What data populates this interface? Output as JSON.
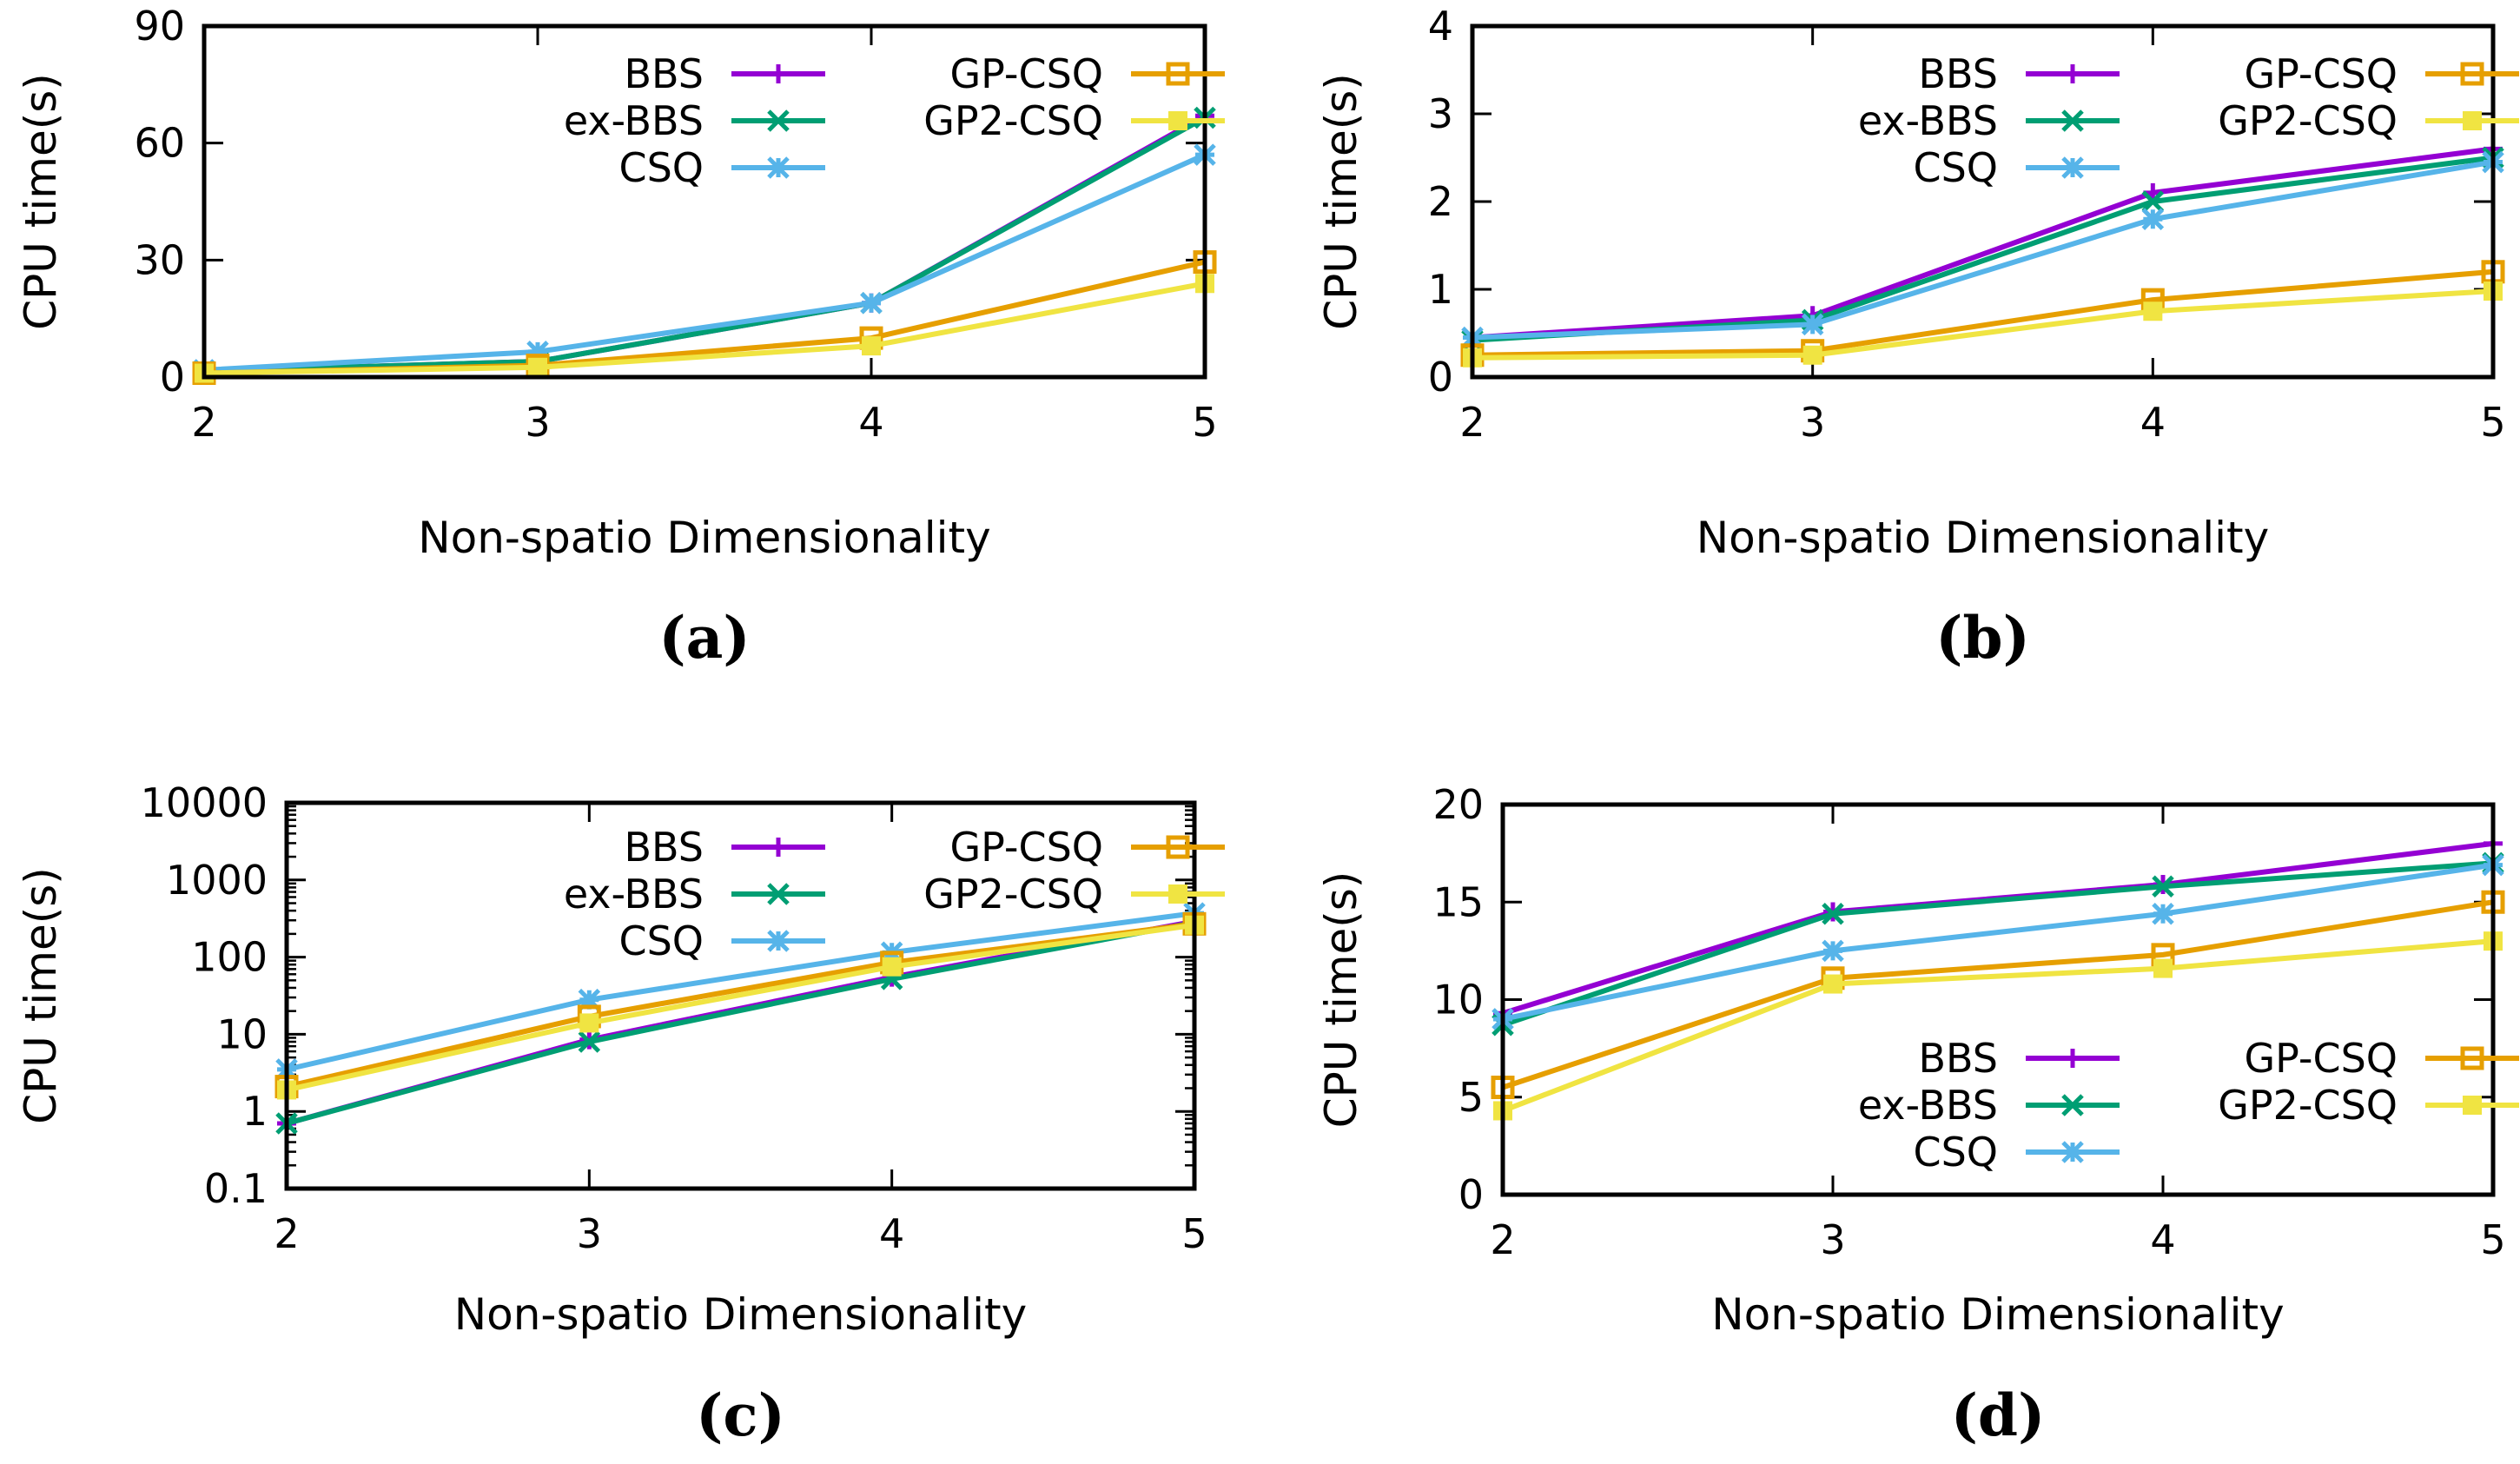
{
  "chart_data": [
    {
      "type": "line",
      "caption": "(a)",
      "xlabel": "Non-spatio Dimensionality",
      "ylabel": "CPU time(s)",
      "yscale": "linear",
      "x": [
        2,
        3,
        4,
        5
      ],
      "xticks": [
        "2",
        "3",
        "4",
        "5"
      ],
      "ylim": [
        0,
        90
      ],
      "yticks": [
        0,
        30,
        60,
        90
      ],
      "ytick_labels": [
        "0",
        "30",
        "60",
        "90"
      ],
      "legend_position": "top-right",
      "series": [
        {
          "name": "BBS",
          "values": [
            1.5,
            4,
            19,
            67
          ]
        },
        {
          "name": "ex-BBS",
          "values": [
            1.5,
            4,
            19,
            66.5
          ]
        },
        {
          "name": "CSQ",
          "values": [
            1.8,
            6.5,
            19,
            57
          ]
        },
        {
          "name": "GP-CSQ",
          "values": [
            1,
            3,
            10,
            29.5
          ]
        },
        {
          "name": "GP2-CSQ",
          "values": [
            1,
            2.5,
            8,
            24
          ]
        }
      ]
    },
    {
      "type": "line",
      "caption": "(b)",
      "xlabel": "Non-spatio Dimensionality",
      "ylabel": "CPU time(s)",
      "yscale": "linear",
      "x": [
        2,
        3,
        4,
        5
      ],
      "xticks": [
        "2",
        "3",
        "4",
        "5"
      ],
      "ylim": [
        0,
        4
      ],
      "yticks": [
        0,
        1,
        2,
        3,
        4
      ],
      "ytick_labels": [
        "0",
        "1",
        "2",
        "3",
        "4"
      ],
      "legend_position": "top-right",
      "series": [
        {
          "name": "BBS",
          "values": [
            0.45,
            0.7,
            2.1,
            2.6
          ]
        },
        {
          "name": "ex-BBS",
          "values": [
            0.42,
            0.65,
            2.0,
            2.5
          ]
        },
        {
          "name": "CSQ",
          "values": [
            0.45,
            0.6,
            1.8,
            2.45
          ]
        },
        {
          "name": "GP-CSQ",
          "values": [
            0.25,
            0.3,
            0.88,
            1.2
          ]
        },
        {
          "name": "GP2-CSQ",
          "values": [
            0.22,
            0.25,
            0.75,
            0.98
          ]
        }
      ]
    },
    {
      "type": "line",
      "caption": "(c)",
      "xlabel": "Non-spatio Dimensionality",
      "ylabel": "CPU time(s)",
      "yscale": "log",
      "x": [
        2,
        3,
        4,
        5
      ],
      "xticks": [
        "2",
        "3",
        "4",
        "5"
      ],
      "ylim": [
        0.1,
        10000
      ],
      "yticks": [
        0.1,
        1,
        10,
        100,
        1000,
        10000
      ],
      "ytick_labels": [
        "0.1",
        "1",
        "10",
        "100",
        "1000",
        "10000"
      ],
      "legend_position": "top-right",
      "series": [
        {
          "name": "BBS",
          "values": [
            0.7,
            8.5,
            55,
            290
          ]
        },
        {
          "name": "ex-BBS",
          "values": [
            0.7,
            8,
            52,
            280
          ]
        },
        {
          "name": "CSQ",
          "values": [
            3.5,
            28,
            115,
            370
          ]
        },
        {
          "name": "GP-CSQ",
          "values": [
            2.1,
            17,
            85,
            270
          ]
        },
        {
          "name": "GP2-CSQ",
          "values": [
            1.9,
            14,
            75,
            260
          ]
        }
      ]
    },
    {
      "type": "line",
      "caption": "(d)",
      "xlabel": "Non-spatio Dimensionality",
      "ylabel": "CPU time(s)",
      "yscale": "linear",
      "x": [
        2,
        3,
        4,
        5
      ],
      "xticks": [
        "2",
        "3",
        "4",
        "5"
      ],
      "ylim": [
        0,
        20
      ],
      "yticks": [
        0,
        5,
        10,
        15,
        20
      ],
      "ytick_labels": [
        "0",
        "5",
        "10",
        "15",
        "20"
      ],
      "legend_position": "bottom-right",
      "series": [
        {
          "name": "BBS",
          "values": [
            9.3,
            14.5,
            15.9,
            18
          ]
        },
        {
          "name": "ex-BBS",
          "values": [
            8.7,
            14.4,
            15.8,
            17
          ]
        },
        {
          "name": "CSQ",
          "values": [
            9.0,
            12.5,
            14.4,
            16.9
          ]
        },
        {
          "name": "GP-CSQ",
          "values": [
            5.5,
            11.1,
            12.3,
            15
          ]
        },
        {
          "name": "GP2-CSQ",
          "values": [
            4.3,
            10.8,
            11.6,
            13
          ]
        }
      ]
    }
  ],
  "styles": {
    "BBS": {
      "color": "#9400d3",
      "marker": "plus"
    },
    "ex-BBS": {
      "color": "#009e73",
      "marker": "cross"
    },
    "CSQ": {
      "color": "#56b4e9",
      "marker": "star"
    },
    "GP-CSQ": {
      "color": "#e69f00",
      "marker": "square"
    },
    "GP2-CSQ": {
      "color": "#f0e442",
      "marker": "filled-square"
    }
  }
}
